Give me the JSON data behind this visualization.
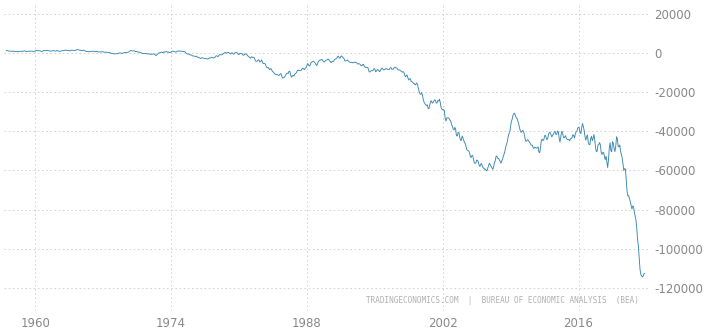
{
  "background_color": "#ffffff",
  "line_color": "#3a87b0",
  "grid_color": "#cccccc",
  "text_color_axis": "#888888",
  "x_tick_labels": [
    "1960",
    "1974",
    "1988",
    "2002",
    "2016"
  ],
  "x_tick_positions": [
    1960,
    1974,
    1988,
    2002,
    2016
  ],
  "y_tick_labels": [
    "20000",
    "0",
    "-20000",
    "-40000",
    "-60000",
    "-80000",
    "-100000",
    "-120000"
  ],
  "y_tick_values": [
    20000,
    0,
    -20000,
    -40000,
    -60000,
    -80000,
    -100000,
    -120000
  ],
  "ylim": [
    -132000,
    25000
  ],
  "xlim_start": 1956.8,
  "xlim_end": 2023.2,
  "watermark": "TRADINGECONOMICS.COM  |  BUREAU OF ECONOMIC ANALYSIS  (BEA)"
}
